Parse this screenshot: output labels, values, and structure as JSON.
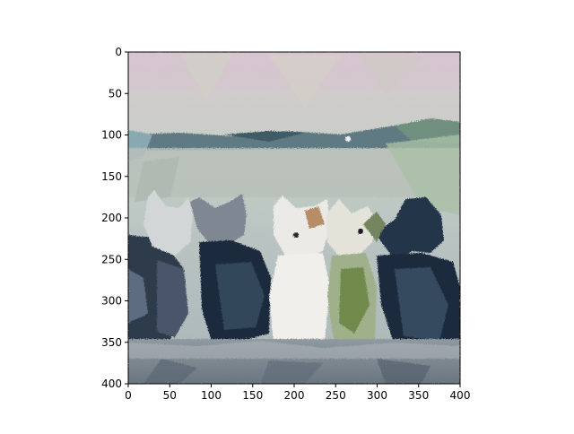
{
  "chart_data": {
    "type": "image",
    "title": "",
    "xlabel": "",
    "ylabel": "",
    "xlim": [
      0,
      400
    ],
    "ylim": [
      400,
      0
    ],
    "y_inverted": true,
    "grid": false,
    "x_ticks": [
      0,
      50,
      100,
      150,
      200,
      250,
      300,
      350,
      400
    ],
    "y_ticks": [
      0,
      50,
      100,
      150,
      200,
      250,
      300,
      350,
      400
    ],
    "x_tick_labels": [
      "0",
      "50",
      "100",
      "150",
      "200",
      "250",
      "300",
      "350",
      "400"
    ],
    "y_tick_labels": [
      "0",
      "50",
      "100",
      "150",
      "200",
      "250",
      "300",
      "350",
      "400"
    ]
  }
}
